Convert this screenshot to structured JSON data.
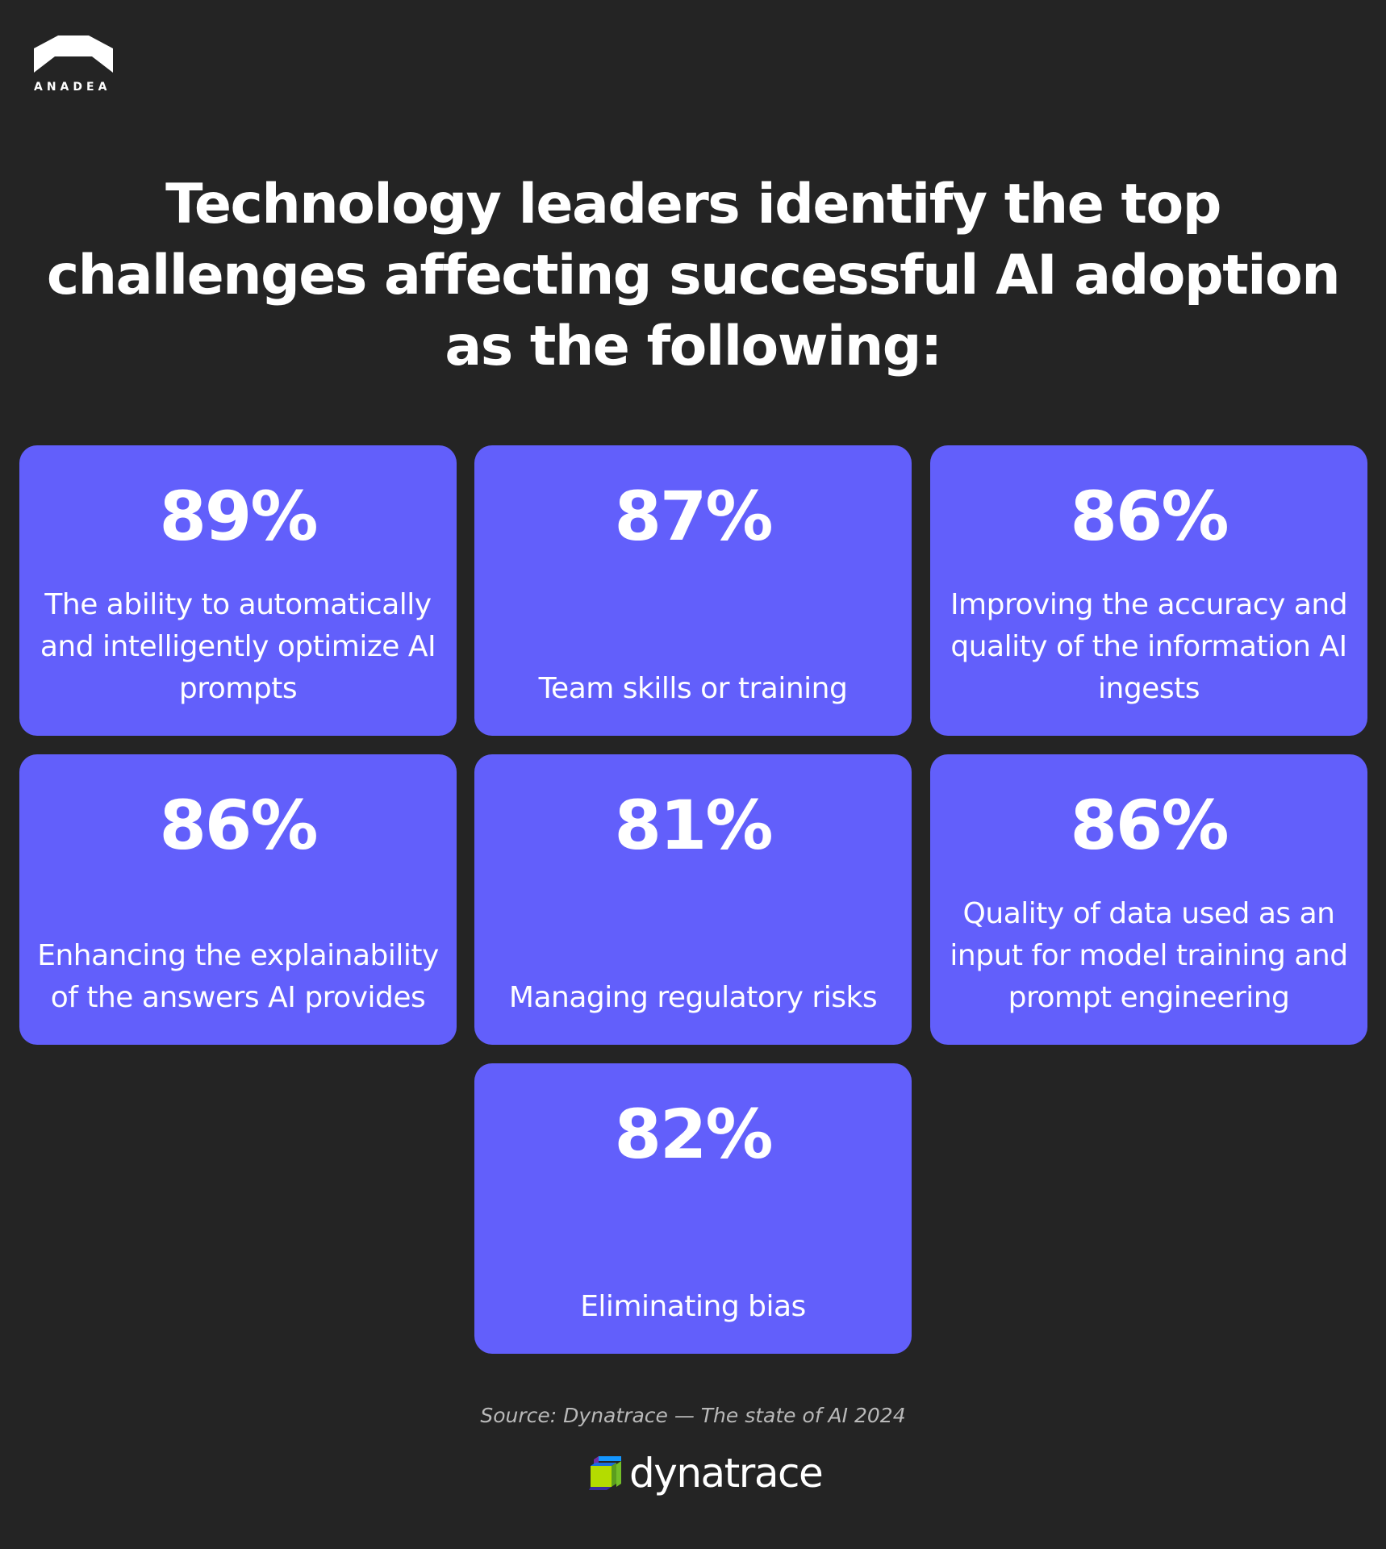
{
  "brand": {
    "name": "ANADEA"
  },
  "headline": {
    "lines": [
      "Technology leaders identify the top",
      "challenges affecting successful AI adoption",
      "as the following:"
    ]
  },
  "cards": [
    {
      "percent": "89%",
      "description": "The ability to automatically and intelligently optimize AI prompts"
    },
    {
      "percent": "87%",
      "description": "Team skills or training"
    },
    {
      "percent": "86%",
      "description": "Improving the accuracy and quality of the information AI ingests"
    },
    {
      "percent": "86%",
      "description": "Enhancing the explainability of the answers AI provides"
    },
    {
      "percent": "81%",
      "description": "Managing regulatory risks"
    },
    {
      "percent": "86%",
      "description": "Quality of data used as an input for model training and prompt engineering"
    },
    {
      "percent": "82%",
      "description": "Eliminating bias"
    }
  ],
  "source": {
    "text": "Source: Dynatrace — The state of AI 2024"
  },
  "footer_logo": {
    "name": "dynatrace"
  },
  "colors": {
    "background": "#242424",
    "card": "#625ffb",
    "text": "#ffffff",
    "source_text": "#b9b9b9"
  }
}
